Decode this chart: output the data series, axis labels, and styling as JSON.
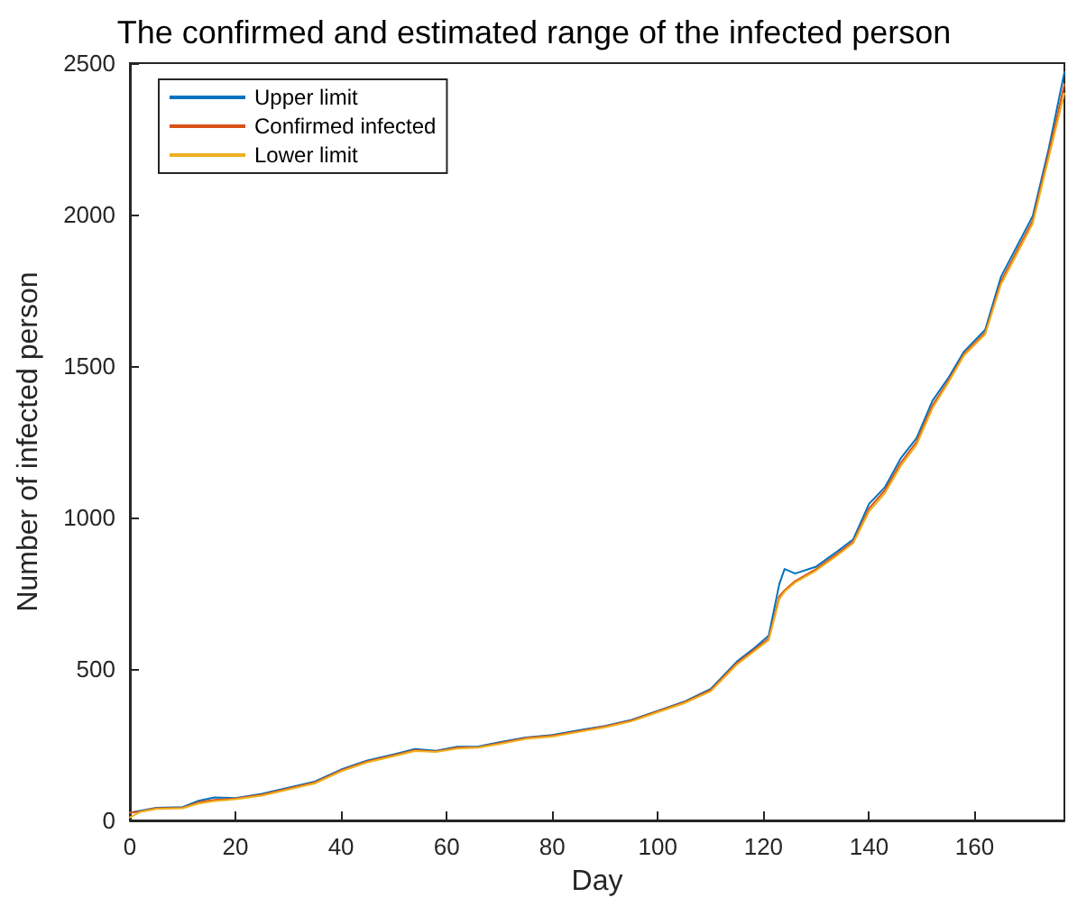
{
  "chart_data": {
    "type": "line",
    "title": "The confirmed and estimated range of the infected person",
    "xlabel": "Day",
    "ylabel": "Number of infected person",
    "xlim": [
      0,
      177
    ],
    "xticks": [
      0,
      20,
      40,
      60,
      80,
      100,
      120,
      140,
      160
    ],
    "ylim": [
      0,
      2500
    ],
    "yticks": [
      0,
      500,
      1000,
      1500,
      2000,
      2500
    ],
    "grid": false,
    "legend": "top left",
    "marker": "none",
    "line_style": "solid",
    "x": [
      0,
      2,
      5,
      10,
      13,
      16,
      20,
      25,
      30,
      35,
      40,
      45,
      50,
      54,
      58,
      62,
      66,
      70,
      75,
      80,
      85,
      90,
      95,
      100,
      105,
      110,
      115,
      118,
      121,
      123,
      124,
      126,
      130,
      134,
      137,
      140,
      143,
      146,
      149,
      152,
      155,
      158,
      162,
      165,
      168,
      171,
      174,
      177
    ],
    "series": [
      {
        "name": "Upper limit",
        "color": "#0072bd",
        "values": [
          25,
          32,
          42,
          44,
          65,
          76,
          74,
          88,
          108,
          128,
          168,
          198,
          218,
          236,
          230,
          243,
          244,
          258,
          274,
          282,
          298,
          312,
          332,
          362,
          392,
          434,
          525,
          565,
          610,
          780,
          830,
          815,
          838,
          888,
          928,
          1045,
          1100,
          1195,
          1262,
          1385,
          1460,
          1548,
          1620,
          1795,
          1895,
          1995,
          2215,
          2470
        ]
      },
      {
        "name": "Confirmed infected",
        "color": "#d95319",
        "values": [
          25,
          30,
          40,
          42,
          60,
          68,
          72,
          85,
          105,
          125,
          165,
          195,
          215,
          232,
          228,
          240,
          242,
          255,
          272,
          280,
          295,
          310,
          330,
          360,
          390,
          430,
          520,
          560,
          600,
          740,
          760,
          790,
          830,
          880,
          920,
          1030,
          1090,
          1180,
          1250,
          1370,
          1450,
          1540,
          1610,
          1780,
          1880,
          1980,
          2200,
          2430
        ]
      },
      {
        "name": "Lower limit",
        "color": "#edb120",
        "values": [
          10,
          28,
          38,
          40,
          56,
          64,
          70,
          82,
          102,
          122,
          162,
          192,
          212,
          229,
          226,
          237,
          240,
          252,
          269,
          277,
          292,
          307,
          327,
          357,
          387,
          426,
          515,
          555,
          595,
          730,
          755,
          785,
          825,
          875,
          915,
          1020,
          1080,
          1170,
          1240,
          1360,
          1445,
          1535,
          1605,
          1770,
          1870,
          1970,
          2185,
          2400
        ]
      }
    ]
  }
}
